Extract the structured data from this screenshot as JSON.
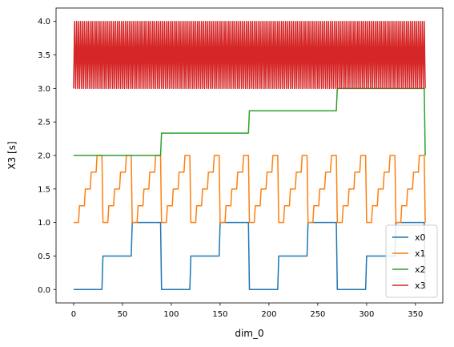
{
  "chart_data": {
    "type": "line",
    "xlabel": "dim_0",
    "ylabel": "X3 [s]",
    "xlim": [
      -18,
      378
    ],
    "ylim": [
      -0.2,
      4.2
    ],
    "xticks": [
      0,
      50,
      100,
      150,
      200,
      250,
      300,
      350
    ],
    "yticks": [
      0.0,
      0.5,
      1.0,
      1.5,
      2.0,
      2.5,
      3.0,
      3.5,
      4.0
    ],
    "ytick_labels": [
      "0.0",
      "0.5",
      "1.0",
      "1.5",
      "2.0",
      "2.5",
      "3.0",
      "3.5",
      "4.0"
    ],
    "grid": false,
    "legend": "lower-right",
    "x": {
      "start": 0,
      "stop": 360,
      "step": 1
    },
    "series": [
      {
        "name": "x0",
        "color": "#1f77b4",
        "pattern": "tile",
        "period": 30,
        "levels": [
          0,
          0.5,
          1
        ]
      },
      {
        "name": "x1",
        "color": "#ff7f0e",
        "pattern": "tile",
        "period": 6,
        "levels": [
          1,
          1.25,
          1.5,
          1.75,
          2
        ]
      },
      {
        "name": "x2",
        "color": "#2ca02c",
        "pattern": "tile",
        "period": 90,
        "levels": [
          2,
          2.333333,
          2.666667,
          3
        ]
      },
      {
        "name": "x3",
        "color": "#d62728",
        "pattern": "tile",
        "period": 1,
        "levels": [
          3,
          4
        ]
      }
    ]
  }
}
